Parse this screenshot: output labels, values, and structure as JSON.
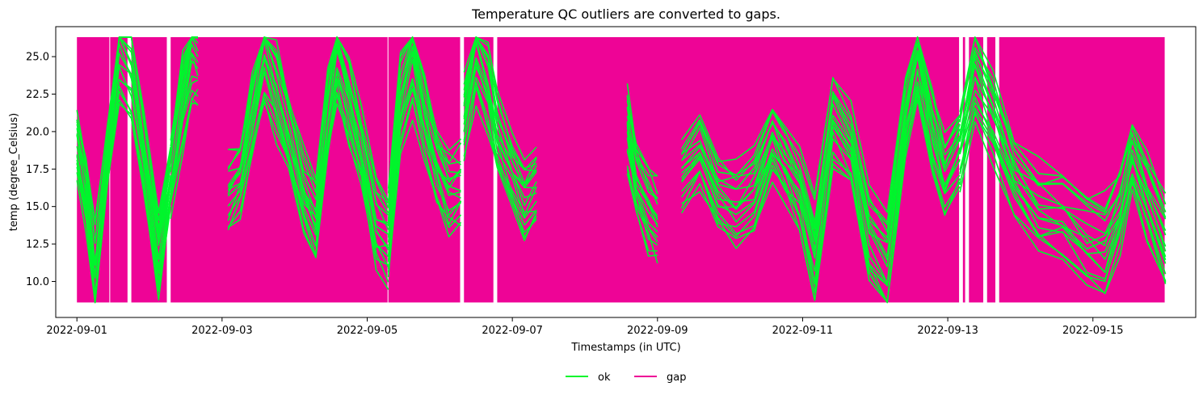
{
  "chart_data": {
    "type": "line",
    "title": "Temperature QC outliers are converted to gaps.",
    "xlabel": "Timestamps (in UTC)",
    "ylabel": "temp (degree_Celsius)",
    "x_ticks": [
      "2022-09-01",
      "2022-09-03",
      "2022-09-05",
      "2022-09-07",
      "2022-09-09",
      "2022-09-11",
      "2022-09-13",
      "2022-09-15"
    ],
    "y_ticks": [
      10.0,
      12.5,
      15.0,
      17.5,
      20.0,
      22.5,
      25.0
    ],
    "y_tick_labels": [
      "10.0",
      "12.5",
      "15.0",
      "17.5",
      "20.0",
      "22.5",
      "25.0"
    ],
    "xlim": [
      "2022-08-31T17:00",
      "2022-09-16T10:00"
    ],
    "ylim": [
      7.6,
      27.0
    ],
    "grid": false,
    "legend_placement": "below-center",
    "series": [
      {
        "name": "ok",
        "color": "#00f52c"
      },
      {
        "name": "gap",
        "color": "#ee0496"
      }
    ],
    "gap_band": {
      "ymin": 8.6,
      "ymax": 26.3
    },
    "gap_intervals": [
      [
        "2022-09-01T00:00",
        "2022-09-01T11:00"
      ],
      [
        "2022-09-01T11:00",
        "2022-09-01T17:00"
      ],
      [
        "2022-09-01T18:00",
        "2022-09-02T06:00"
      ],
      [
        "2022-09-02T07:00",
        "2022-09-05T07:00"
      ],
      [
        "2022-09-05T07:00",
        "2022-09-06T07:00"
      ],
      [
        "2022-09-06T08:00",
        "2022-09-06T18:00"
      ],
      [
        "2022-09-06T19:00",
        "2022-09-13T04:00"
      ],
      [
        "2022-09-13T05:00",
        "2022-09-13T06:00"
      ],
      [
        "2022-09-13T07:00",
        "2022-09-13T12:00"
      ],
      [
        "2022-09-13T13:00",
        "2022-09-13T16:00"
      ],
      [
        "2022-09-13T17:00",
        "2022-09-16T00:00"
      ]
    ],
    "ok_segments": [
      {
        "start": "2022-09-01T00:00",
        "end": "2022-09-02T07:00",
        "points": [
          [
            "2022-09-01T00:00",
            19.0
          ],
          [
            "2022-09-01T03:00",
            16.0
          ],
          [
            "2022-09-01T06:00",
            10.0
          ],
          [
            "2022-09-01T10:00",
            18.0
          ],
          [
            "2022-09-01T14:00",
            25.5
          ],
          [
            "2022-09-01T18:00",
            24.0
          ],
          [
            "2022-09-01T22:00",
            19.0
          ],
          [
            "2022-09-02T03:00",
            12.0
          ],
          [
            "2022-09-02T07:00",
            17.0
          ]
        ]
      },
      {
        "start": "2022-09-02T07:00",
        "end": "2022-09-02T16:00",
        "points": [
          [
            "2022-09-02T07:00",
            17.0
          ],
          [
            "2022-09-02T11:00",
            22.0
          ],
          [
            "2022-09-02T14:00",
            25.5
          ],
          [
            "2022-09-02T16:00",
            25.0
          ]
        ]
      },
      {
        "start": "2022-09-03T02:00",
        "end": "2022-09-05T07:00",
        "points": [
          [
            "2022-09-03T02:00",
            16.0
          ],
          [
            "2022-09-03T06:00",
            17.0
          ],
          [
            "2022-09-03T10:00",
            21.0
          ],
          [
            "2022-09-03T14:00",
            25.5
          ],
          [
            "2022-09-03T18:00",
            23.0
          ],
          [
            "2022-09-03T22:00",
            20.0
          ],
          [
            "2022-09-04T03:00",
            16.0
          ],
          [
            "2022-09-04T07:00",
            14.0
          ],
          [
            "2022-09-04T11:00",
            21.0
          ],
          [
            "2022-09-04T14:00",
            25.5
          ],
          [
            "2022-09-04T18:00",
            22.0
          ],
          [
            "2022-09-04T22:00",
            19.0
          ],
          [
            "2022-09-05T03:00",
            14.0
          ],
          [
            "2022-09-05T07:00",
            13.0
          ]
        ]
      },
      {
        "start": "2022-09-05T07:00",
        "end": "2022-09-06T07:00",
        "points": [
          [
            "2022-09-05T07:00",
            13.0
          ],
          [
            "2022-09-05T11:00",
            22.0
          ],
          [
            "2022-09-05T15:00",
            25.0
          ],
          [
            "2022-09-05T19:00",
            21.0
          ],
          [
            "2022-09-05T23:00",
            18.0
          ],
          [
            "2022-09-06T03:00",
            16.0
          ],
          [
            "2022-09-06T07:00",
            16.5
          ]
        ]
      },
      {
        "start": "2022-09-06T08:00",
        "end": "2022-09-07T08:00",
        "points": [
          [
            "2022-09-06T08:00",
            21.0
          ],
          [
            "2022-09-06T12:00",
            25.5
          ],
          [
            "2022-09-06T16:00",
            23.0
          ],
          [
            "2022-09-06T19:00",
            20.0
          ],
          [
            "2022-09-07T00:00",
            17.0
          ],
          [
            "2022-09-07T04:00",
            15.5
          ],
          [
            "2022-09-07T08:00",
            16.5
          ]
        ]
      },
      {
        "start": "2022-09-08T14:00",
        "end": "2022-09-09T00:00",
        "points": [
          [
            "2022-09-08T14:00",
            20.5
          ],
          [
            "2022-09-08T17:00",
            17.0
          ],
          [
            "2022-09-08T21:00",
            15.0
          ],
          [
            "2022-09-09T00:00",
            14.0
          ]
        ]
      },
      {
        "start": "2022-09-09T08:00",
        "end": "2022-09-13T04:00",
        "points": [
          [
            "2022-09-09T08:00",
            17.0
          ],
          [
            "2022-09-09T14:00",
            18.5
          ],
          [
            "2022-09-09T20:00",
            16.0
          ],
          [
            "2022-09-10T02:00",
            15.0
          ],
          [
            "2022-09-10T08:00",
            16.0
          ],
          [
            "2022-09-10T14:00",
            19.5
          ],
          [
            "2022-09-10T18:00",
            18.0
          ],
          [
            "2022-09-10T23:00",
            16.0
          ],
          [
            "2022-09-11T04:00",
            12.0
          ],
          [
            "2022-09-11T10:00",
            21.0
          ],
          [
            "2022-09-11T16:00",
            19.0
          ],
          [
            "2022-09-11T22:00",
            13.0
          ],
          [
            "2022-09-12T04:00",
            11.0
          ],
          [
            "2022-09-12T10:00",
            21.0
          ],
          [
            "2022-09-12T14:00",
            25.0
          ],
          [
            "2022-09-12T19:00",
            20.0
          ],
          [
            "2022-09-12T23:00",
            17.0
          ],
          [
            "2022-09-13T04:00",
            19.0
          ]
        ]
      },
      {
        "start": "2022-09-13T04:00",
        "end": "2022-09-16T00:00",
        "points": [
          [
            "2022-09-13T04:00",
            19.0
          ],
          [
            "2022-09-13T09:00",
            24.0
          ],
          [
            "2022-09-13T15:00",
            21.0
          ],
          [
            "2022-09-13T22:00",
            17.0
          ],
          [
            "2022-09-14T06:00",
            15.0
          ],
          [
            "2022-09-14T14:00",
            14.5
          ],
          [
            "2022-09-14T22:00",
            13.0
          ],
          [
            "2022-09-15T04:00",
            12.5
          ],
          [
            "2022-09-15T09:00",
            15.0
          ],
          [
            "2022-09-15T13:00",
            18.5
          ],
          [
            "2022-09-15T18:00",
            15.5
          ],
          [
            "2022-09-16T00:00",
            12.5
          ]
        ]
      }
    ]
  }
}
